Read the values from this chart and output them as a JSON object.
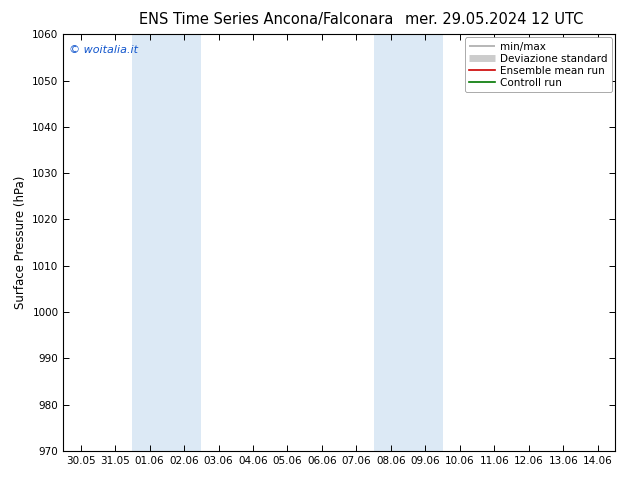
{
  "title_left": "ENS Time Series Ancona/Falconara",
  "title_right": "mer. 29.05.2024 12 UTC",
  "ylabel": "Surface Pressure (hPa)",
  "ylim": [
    970,
    1060
  ],
  "yticks": [
    970,
    980,
    990,
    1000,
    1010,
    1020,
    1030,
    1040,
    1050,
    1060
  ],
  "xlabel_ticks": [
    "30.05",
    "31.05",
    "01.06",
    "02.06",
    "03.06",
    "04.06",
    "05.06",
    "06.06",
    "07.06",
    "08.06",
    "09.06",
    "10.06",
    "11.06",
    "12.06",
    "13.06",
    "14.06"
  ],
  "shaded_bands": [
    {
      "x_start": "01.06",
      "x_end": "03.06"
    },
    {
      "x_start": "08.06",
      "x_end": "10.06"
    }
  ],
  "shade_color": "#dce9f5",
  "legend_entries": [
    {
      "label": "min/max",
      "color": "#aaaaaa",
      "lw": 1.2
    },
    {
      "label": "Deviazione standard",
      "color": "#cccccc",
      "lw": 5
    },
    {
      "label": "Ensemble mean run",
      "color": "#cc0000",
      "lw": 1.2
    },
    {
      "label": "Controll run",
      "color": "#007700",
      "lw": 1.2
    }
  ],
  "copyright_text": "© woitalia.it",
  "copyright_color": "#1155cc",
  "background_color": "#ffffff",
  "title_fontsize": 10.5,
  "tick_fontsize": 7.5,
  "ylabel_fontsize": 8.5,
  "legend_fontsize": 7.5
}
